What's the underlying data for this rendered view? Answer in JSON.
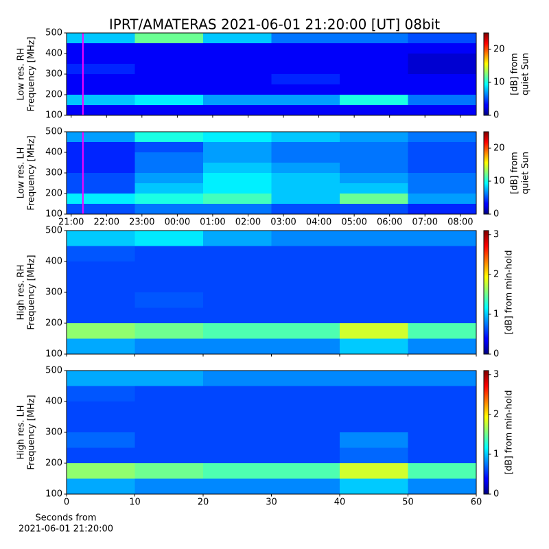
{
  "title": "IPRT/AMATERAS 2021-06-01 21:20:00 [UT]   08bit",
  "chart_data": [
    {
      "type": "spectrogram",
      "ylabel": [
        "Low res. RH",
        "Frequency [MHz]"
      ],
      "xlim": [
        20.87,
        32.45
      ],
      "xticks": [
        {
          "value": 21,
          "label": "21:00"
        },
        {
          "value": 22,
          "label": "22:00"
        },
        {
          "value": 23,
          "label": "23:00"
        },
        {
          "value": 24,
          "label": "00:00"
        },
        {
          "value": 25,
          "label": "01:00"
        },
        {
          "value": 26,
          "label": "02:00"
        },
        {
          "value": 27,
          "label": "03:00"
        },
        {
          "value": 28,
          "label": "04:00"
        },
        {
          "value": 29,
          "label": "05:00"
        },
        {
          "value": 30,
          "label": "06:00"
        },
        {
          "value": 31,
          "label": "07:00"
        },
        {
          "value": 32,
          "label": "08:00"
        }
      ],
      "show_xticklabels": false,
      "ylim": [
        100,
        500
      ],
      "yticks": [
        100,
        200,
        300,
        400,
        500
      ],
      "x_edges": [
        20.87,
        22.8,
        24.73,
        26.66,
        28.59,
        30.52,
        32.45
      ],
      "y_edges": [
        100,
        150,
        200,
        250,
        300,
        350,
        400,
        450,
        500
      ],
      "values": [
        [
          3,
          3,
          3,
          3,
          3,
          3
        ],
        [
          8,
          9,
          7,
          7,
          10,
          6
        ],
        [
          3,
          3,
          3,
          3,
          3,
          3
        ],
        [
          3,
          3,
          3,
          4,
          3,
          3
        ],
        [
          4,
          3,
          3,
          3,
          3,
          2
        ],
        [
          3,
          3,
          3,
          3,
          3,
          2
        ],
        [
          3,
          3,
          3,
          3,
          3,
          3
        ],
        [
          8,
          12,
          8,
          6,
          6,
          5
        ]
      ],
      "clim": [
        0,
        25
      ],
      "cticks": [
        0,
        10,
        20
      ],
      "clabel": [
        "[dB] from",
        "quiet Sun"
      ],
      "marker_x": 21.333,
      "marker_color": "#ff00ff"
    },
    {
      "type": "spectrogram",
      "ylabel": [
        "Low res. LH",
        "Frequency [MHz]"
      ],
      "xlim": [
        20.87,
        32.45
      ],
      "xticks": [
        {
          "value": 21,
          "label": "21:00"
        },
        {
          "value": 22,
          "label": "22:00"
        },
        {
          "value": 23,
          "label": "23:00"
        },
        {
          "value": 24,
          "label": "00:00"
        },
        {
          "value": 25,
          "label": "01:00"
        },
        {
          "value": 26,
          "label": "02:00"
        },
        {
          "value": 27,
          "label": "03:00"
        },
        {
          "value": 28,
          "label": "04:00"
        },
        {
          "value": 29,
          "label": "05:00"
        },
        {
          "value": 30,
          "label": "06:00"
        },
        {
          "value": 31,
          "label": "07:00"
        },
        {
          "value": 32,
          "label": "08:00"
        }
      ],
      "show_xticklabels": true,
      "ylim": [
        100,
        500
      ],
      "yticks": [
        100,
        200,
        300,
        400,
        500
      ],
      "x_edges": [
        20.87,
        22.8,
        24.73,
        26.66,
        28.59,
        30.52,
        32.45
      ],
      "y_edges": [
        100,
        150,
        200,
        250,
        300,
        350,
        400,
        450,
        500
      ],
      "values": [
        [
          5,
          6,
          6,
          5,
          5,
          4
        ],
        [
          9,
          10,
          11,
          8,
          12,
          7
        ],
        [
          5,
          8,
          9,
          8,
          8,
          6
        ],
        [
          5,
          7,
          9,
          8,
          7,
          6
        ],
        [
          4,
          6,
          8,
          7,
          6,
          5
        ],
        [
          4,
          6,
          7,
          6,
          6,
          5
        ],
        [
          4,
          5,
          7,
          6,
          6,
          5
        ],
        [
          7,
          10,
          9,
          8,
          7,
          6
        ]
      ],
      "clim": [
        0,
        25
      ],
      "cticks": [
        0,
        10,
        20
      ],
      "clabel": [
        "[dB] from",
        "quiet Sun"
      ],
      "marker_x": 21.333,
      "marker_color": "#ff00ff"
    },
    {
      "type": "spectrogram",
      "ylabel": [
        "High res. RH",
        "Frequency [MHz]"
      ],
      "xlim": [
        0,
        60
      ],
      "xticks": [
        0,
        10,
        20,
        30,
        40,
        50,
        60
      ],
      "show_xticklabels": false,
      "ylim": [
        100,
        500
      ],
      "yticks": [
        100,
        200,
        300,
        400,
        500
      ],
      "x_edges": [
        0,
        10,
        20,
        30,
        40,
        50,
        60
      ],
      "y_edges": [
        100,
        150,
        200,
        250,
        300,
        350,
        400,
        450,
        500
      ],
      "values": [
        [
          0.9,
          0.8,
          0.8,
          0.8,
          1.0,
          0.8
        ],
        [
          1.6,
          1.5,
          1.4,
          1.4,
          1.8,
          1.4
        ],
        [
          0.6,
          0.6,
          0.6,
          0.6,
          0.6,
          0.6
        ],
        [
          0.6,
          0.65,
          0.6,
          0.6,
          0.6,
          0.6
        ],
        [
          0.6,
          0.6,
          0.6,
          0.6,
          0.6,
          0.6
        ],
        [
          0.6,
          0.6,
          0.6,
          0.6,
          0.6,
          0.6
        ],
        [
          0.65,
          0.6,
          0.6,
          0.6,
          0.6,
          0.6
        ],
        [
          1.0,
          1.1,
          0.9,
          0.8,
          0.8,
          0.8
        ]
      ],
      "clim": [
        0,
        3.1
      ],
      "cticks": [
        0,
        1,
        2,
        3
      ],
      "clabel": [
        "[dB] from min-hold"
      ]
    },
    {
      "type": "spectrogram",
      "ylabel": [
        "High res. LH",
        "Frequency [MHz]"
      ],
      "xlim": [
        0,
        60
      ],
      "xticks": [
        0,
        10,
        20,
        30,
        40,
        50,
        60
      ],
      "show_xticklabels": true,
      "xlabel": [
        "Seconds from",
        "2021-06-01 21:20:00"
      ],
      "ylim": [
        100,
        500
      ],
      "yticks": [
        100,
        200,
        300,
        400,
        500
      ],
      "x_edges": [
        0,
        10,
        20,
        30,
        40,
        50,
        60
      ],
      "y_edges": [
        100,
        150,
        200,
        250,
        300,
        350,
        400,
        450,
        500
      ],
      "values": [
        [
          0.9,
          0.8,
          0.8,
          0.8,
          1.0,
          0.8
        ],
        [
          1.6,
          1.5,
          1.4,
          1.4,
          1.8,
          1.4
        ],
        [
          0.6,
          0.6,
          0.6,
          0.6,
          0.7,
          0.6
        ],
        [
          0.7,
          0.6,
          0.6,
          0.6,
          0.8,
          0.6
        ],
        [
          0.6,
          0.6,
          0.6,
          0.6,
          0.6,
          0.6
        ],
        [
          0.6,
          0.6,
          0.6,
          0.6,
          0.6,
          0.6
        ],
        [
          0.65,
          0.6,
          0.6,
          0.6,
          0.6,
          0.6
        ],
        [
          0.9,
          0.9,
          0.8,
          0.8,
          0.8,
          0.8
        ]
      ],
      "clim": [
        0,
        3.1
      ],
      "cticks": [
        0,
        1,
        2,
        3
      ],
      "clabel": [
        "[dB] from min-hold"
      ]
    }
  ]
}
